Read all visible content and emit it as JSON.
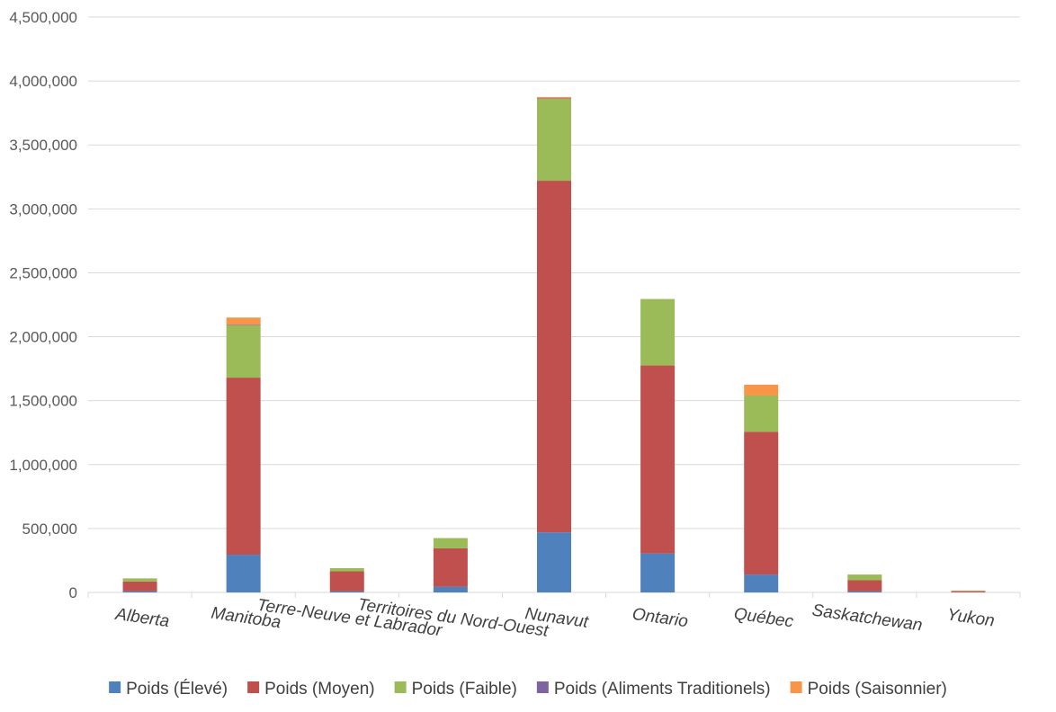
{
  "chart_data": {
    "type": "bar",
    "stacked": true,
    "title": "",
    "xlabel": "",
    "ylabel": "",
    "ylim": [
      0,
      4500000
    ],
    "y_ticks": [
      0,
      500000,
      1000000,
      1500000,
      2000000,
      2500000,
      3000000,
      3500000,
      4000000,
      4500000
    ],
    "y_tick_labels": [
      "0",
      "500,000",
      "1,000,000",
      "1,500,000",
      "2,000,000",
      "2,500,000",
      "3,000,000",
      "3,500,000",
      "4,000,000",
      "4,500,000"
    ],
    "grid": true,
    "legend_position": "bottom",
    "categories": [
      "Alberta",
      "Manitoba",
      "Terre-Neuve et Labrador",
      "Territoires du Nord-Ouest",
      "Nunavut",
      "Ontario",
      "Québec",
      "Saskatchewan",
      "Yukon"
    ],
    "series": [
      {
        "name": "Poids (Élevé)",
        "color": "#4f81bd",
        "values": [
          10000,
          295000,
          10000,
          45000,
          470000,
          305000,
          140000,
          10000,
          2000
        ]
      },
      {
        "name": "Poids (Moyen)",
        "color": "#c0504d",
        "values": [
          75000,
          1385000,
          155000,
          300000,
          2750000,
          1470000,
          1115000,
          85000,
          8000
        ]
      },
      {
        "name": "Poids (Faible)",
        "color": "#9bbb59",
        "values": [
          25000,
          410000,
          25000,
          80000,
          640000,
          520000,
          285000,
          45000,
          3000
        ]
      },
      {
        "name": "Poids (Aliments Traditionels)",
        "color": "#8064a2",
        "values": [
          0,
          5000,
          0,
          0,
          5000,
          0,
          0,
          0,
          0
        ]
      },
      {
        "name": "Poids (Saisonnier)",
        "color": "#f79646",
        "values": [
          0,
          55000,
          0,
          0,
          10000,
          0,
          85000,
          0,
          2000
        ]
      }
    ]
  }
}
